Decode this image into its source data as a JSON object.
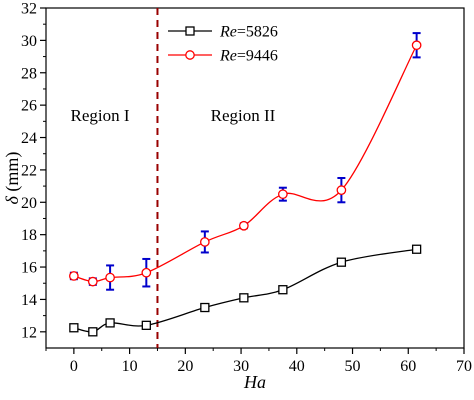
{
  "chart_data": {
    "type": "line",
    "xlabel": "Ha",
    "ylabel": "δ (mm)",
    "xlim": [
      -5,
      70
    ],
    "ylim": [
      11,
      32
    ],
    "xticks": [
      0,
      10,
      20,
      30,
      40,
      50,
      60,
      70
    ],
    "yticks": [
      12,
      14,
      16,
      18,
      20,
      22,
      24,
      26,
      28,
      30,
      32
    ],
    "grid": false,
    "legend_position": "top-center",
    "divider_x": 15,
    "regions": [
      {
        "label": "Region I"
      },
      {
        "label": "Region II"
      }
    ],
    "series": [
      {
        "name": "Re=5826",
        "name_italic": "Re",
        "name_rest": "=5826",
        "color": "#000000",
        "marker": "square",
        "x": [
          0,
          3.4,
          6.5,
          13,
          23.5,
          30.5,
          37.5,
          48,
          61.5
        ],
        "y": [
          12.25,
          12.0,
          12.55,
          12.4,
          13.5,
          14.1,
          14.6,
          16.3,
          17.1
        ],
        "err": [
          0.2,
          0.2,
          0.15,
          0.2,
          0.15,
          0.15,
          0.15,
          0.15,
          0.15
        ]
      },
      {
        "name": "Re=9446",
        "name_italic": "Re",
        "name_rest": "=9446",
        "color": "#ff0000",
        "marker": "circle",
        "x": [
          0,
          3.4,
          6.5,
          13,
          23.5,
          30.5,
          37.5,
          48,
          61.5
        ],
        "y": [
          15.45,
          15.1,
          15.35,
          15.65,
          17.55,
          18.55,
          20.5,
          20.75,
          29.7
        ],
        "err": [
          0.2,
          0.2,
          0.75,
          0.85,
          0.65,
          0.15,
          0.4,
          0.75,
          0.75
        ]
      }
    ],
    "errorbar_color": "#0000cc",
    "divider_color": "#990000"
  }
}
